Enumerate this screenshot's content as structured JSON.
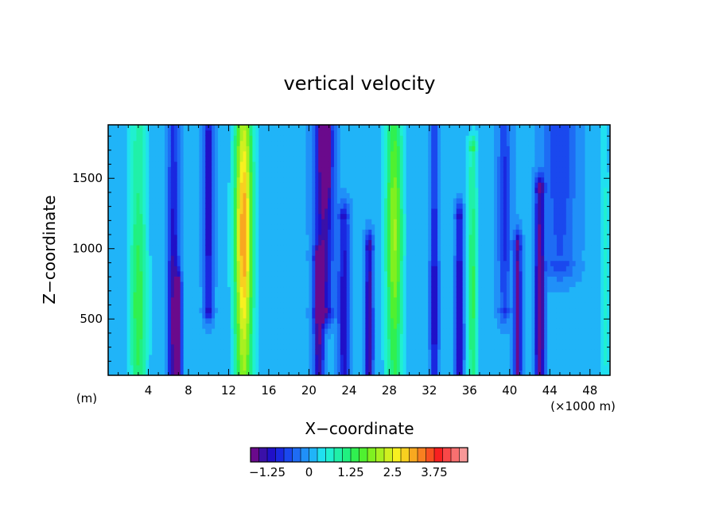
{
  "chart_data": {
    "type": "heatmap",
    "title": "vertical velocity",
    "xlabel": "X−coordinate",
    "ylabel": "Z−coordinate",
    "x_unit_label": "(m)",
    "x_scale_label": "(×1000 m)",
    "xlim": [
      0,
      50
    ],
    "ylim": [
      100,
      1880
    ],
    "x_ticks": [
      4,
      8,
      12,
      16,
      20,
      24,
      28,
      32,
      36,
      40,
      44,
      48
    ],
    "y_ticks": [
      500,
      1000,
      1500
    ],
    "grid": false,
    "colorbar": {
      "placement": "bottom",
      "min": -1.75,
      "step": 0.25,
      "tick_values": [
        -1.25,
        0,
        1.25,
        2.5,
        3.75
      ],
      "tick_labels": [
        "−1.25",
        "0",
        "1.25",
        "2.5",
        "3.75"
      ],
      "colors": [
        "#6a0a8c",
        "#3a10a8",
        "#2010c8",
        "#1a28e0",
        "#1a48ee",
        "#1e6cf4",
        "#2090f8",
        "#20b4f8",
        "#20e0f0",
        "#20f0d0",
        "#20f0a8",
        "#20f080",
        "#30f050",
        "#50f030",
        "#80f020",
        "#a8f020",
        "#d0f020",
        "#f8f020",
        "#f8d020",
        "#f8a820",
        "#f88020",
        "#f85020",
        "#f82020",
        "#f84848",
        "#f87070",
        "#f89898"
      ],
      "over_color": "#ffffff"
    },
    "features": [
      {
        "x": 3.0,
        "z_bottom": 100,
        "z_top": 1880,
        "amp": 1.4,
        "sigma_x": 0.9,
        "z_peak": 600
      },
      {
        "x": 6.5,
        "z_bottom": 100,
        "z_top": 1880,
        "amp": -1.6,
        "sigma_x": 0.55,
        "z_peak": 500
      },
      {
        "x": 7.0,
        "z_bottom": 100,
        "z_top": 700,
        "amp": -2.0,
        "sigma_x": 0.3,
        "z_peak": 450
      },
      {
        "x": 10.0,
        "z_bottom": 600,
        "z_top": 1880,
        "amp": -1.4,
        "sigma_x": 0.45,
        "z_peak": 1400
      },
      {
        "x": 13.5,
        "z_bottom": 100,
        "z_top": 1880,
        "amp": 3.2,
        "sigma_x": 0.9,
        "z_peak": 1100
      },
      {
        "x": 21.5,
        "z_bottom": 600,
        "z_top": 1880,
        "amp": -1.9,
        "sigma_x": 0.9,
        "z_peak": 1700
      },
      {
        "x": 21.7,
        "z_bottom": 1550,
        "z_top": 1880,
        "amp": -2.4,
        "sigma_x": 0.3,
        "z_peak": 1800
      },
      {
        "x": 21.0,
        "z_bottom": 100,
        "z_top": 900,
        "amp": -1.6,
        "sigma_x": 0.5,
        "z_peak": 400
      },
      {
        "x": 23.5,
        "z_bottom": 100,
        "z_top": 1200,
        "amp": -1.3,
        "sigma_x": 0.55,
        "z_peak": 500
      },
      {
        "x": 26.0,
        "z_bottom": 100,
        "z_top": 1000,
        "amp": -1.6,
        "sigma_x": 0.4,
        "z_peak": 400
      },
      {
        "x": 28.5,
        "z_bottom": 100,
        "z_top": 1880,
        "amp": 2.0,
        "sigma_x": 0.85,
        "z_peak": 1100
      },
      {
        "x": 32.5,
        "z_bottom": 100,
        "z_top": 1880,
        "amp": -1.3,
        "sigma_x": 0.4,
        "z_peak": 600
      },
      {
        "x": 35.0,
        "z_bottom": 100,
        "z_top": 1200,
        "amp": -1.5,
        "sigma_x": 0.4,
        "z_peak": 400
      },
      {
        "x": 36.3,
        "z_bottom": 100,
        "z_top": 1700,
        "amp": 1.3,
        "sigma_x": 0.5,
        "z_peak": 700
      },
      {
        "x": 39.5,
        "z_bottom": 600,
        "z_top": 1880,
        "amp": -0.9,
        "sigma_x": 0.6,
        "z_peak": 1300
      },
      {
        "x": 40.8,
        "z_bottom": 100,
        "z_top": 1000,
        "amp": -1.8,
        "sigma_x": 0.35,
        "z_peak": 500
      },
      {
        "x": 43.0,
        "z_bottom": 100,
        "z_top": 1400,
        "amp": -2.0,
        "sigma_x": 0.45,
        "z_peak": 500
      },
      {
        "x": 45.0,
        "z_bottom": 900,
        "z_top": 1880,
        "amp": -0.8,
        "sigma_x": 1.5,
        "z_peak": 1700
      },
      {
        "x": 49.5,
        "z_bottom": 100,
        "z_top": 1880,
        "amp": 0.6,
        "sigma_x": 0.4,
        "z_peak": 800
      }
    ]
  }
}
